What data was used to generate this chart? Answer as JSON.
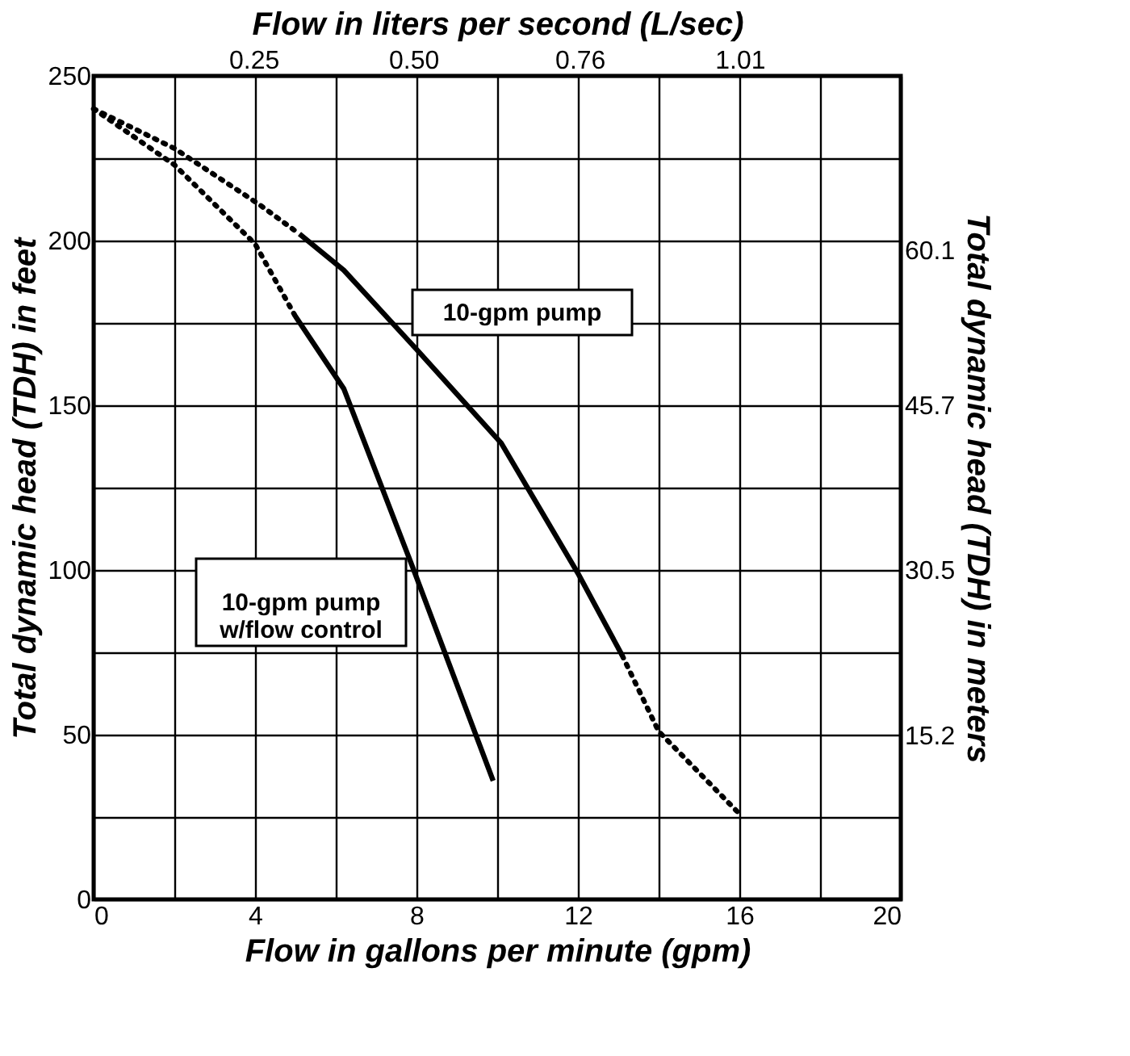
{
  "chart_data": {
    "type": "line",
    "x2label": "Flow in liters per second (L/sec)",
    "xlabel": "Flow in gallons per minute (gpm)",
    "ylabel": "Total dynamic head (TDH) in feet",
    "y2label": "Total dynamic head (TDH) in meters",
    "xlim": [
      0,
      20
    ],
    "xticks": [
      0,
      {
        "value": 2,
        "label": null
      },
      4,
      {
        "value": 6,
        "label": null
      },
      8,
      {
        "value": 10,
        "label": null
      },
      12,
      {
        "value": 14,
        "label": null
      },
      16,
      {
        "value": 18,
        "label": null
      },
      20
    ],
    "ylim": [
      0,
      250
    ],
    "yticks": [
      0,
      {
        "value": 25,
        "label": null
      },
      50,
      {
        "value": 75,
        "label": null
      },
      100,
      {
        "value": 125,
        "label": null
      },
      150,
      {
        "value": 175,
        "label": null
      },
      200,
      {
        "value": 225,
        "label": null
      },
      250
    ],
    "x2lim": [
      0,
      1.262
    ],
    "x2ticks": [
      0.25,
      {
        "value": 0.5,
        "label": "0.50"
      },
      0.76,
      1.01
    ],
    "y2lim": [
      0,
      76.2
    ],
    "y2ticks": [
      15.2,
      30.5,
      45.7,
      60.1
    ],
    "grid": true,
    "legend": false,
    "series": [
      {
        "color": "#000000",
        "line_style": "dotted",
        "x": [
          0,
          2,
          4.1,
          5.1
        ],
        "values": [
          240,
          228,
          211,
          202
        ]
      },
      {
        "name": "10-gpm pump",
        "color": "#000000",
        "line_style": "solid",
        "x": [
          5.1,
          6.2,
          8,
          10.1,
          12,
          13.1
        ],
        "values": [
          202,
          191,
          167,
          138.5,
          99,
          74
        ]
      },
      {
        "color": "#000000",
        "line_style": "dotted",
        "x": [
          13.1,
          14,
          16
        ],
        "values": [
          74,
          51,
          26
        ]
      },
      {
        "color": "#000000",
        "line_style": "dotted",
        "x": [
          0,
          2,
          4,
          5
        ],
        "values": [
          240,
          223,
          199,
          177
        ]
      },
      {
        "name": "10-gpm pump\nw/flow control",
        "color": "#000000",
        "line_style": "solid",
        "x": [
          5,
          6.2,
          7.9,
          9.9
        ],
        "values": [
          177,
          155,
          101,
          36
        ]
      }
    ]
  }
}
